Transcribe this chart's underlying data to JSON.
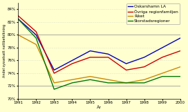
{
  "years": [
    1991,
    1992,
    1993,
    1994,
    1995,
    1996,
    1997,
    1998,
    1999,
    2000
  ],
  "oskarshamn": [
    82.5,
    80.0,
    74.5,
    76.0,
    77.5,
    77.0,
    75.5,
    76.5,
    78.0,
    79.5
  ],
  "ovriga": [
    83.0,
    80.5,
    74.0,
    75.5,
    76.5,
    76.5,
    74.5,
    75.0,
    76.5,
    77.5
  ],
  "riket": [
    80.0,
    78.5,
    72.5,
    73.0,
    73.5,
    73.0,
    72.5,
    73.0,
    74.0,
    75.0
  ],
  "storstads": [
    82.5,
    79.5,
    71.5,
    72.5,
    73.0,
    72.5,
    72.5,
    72.5,
    73.5,
    73.5
  ],
  "colors": {
    "oskarshamn": "#0000bb",
    "ovriga": "#cc0000",
    "riket": "#cc8800",
    "storstads": "#007700"
  },
  "legend_labels": [
    "Oskarshamn LA",
    "Övriga regionfamiljen",
    "Riket",
    "Storstadsregioner"
  ],
  "xlabel": "År",
  "ylabel": "Andel sysselsatt nattbefolkning",
  "ylim": [
    70,
    85
  ],
  "yticks": [
    70,
    72,
    74,
    76,
    78,
    80,
    82,
    84
  ],
  "ytick_labels": [
    "70%",
    "72%",
    "74%",
    "76%",
    "78%",
    "80%",
    "82%",
    "84%"
  ],
  "grid_yticks": [
    72,
    74,
    76,
    78,
    80,
    82,
    84
  ],
  "solid_yticks": [
    72,
    80
  ],
  "bg_color": "#ffffd0",
  "grid_color": "#cccccc",
  "solid_color": "#888888"
}
